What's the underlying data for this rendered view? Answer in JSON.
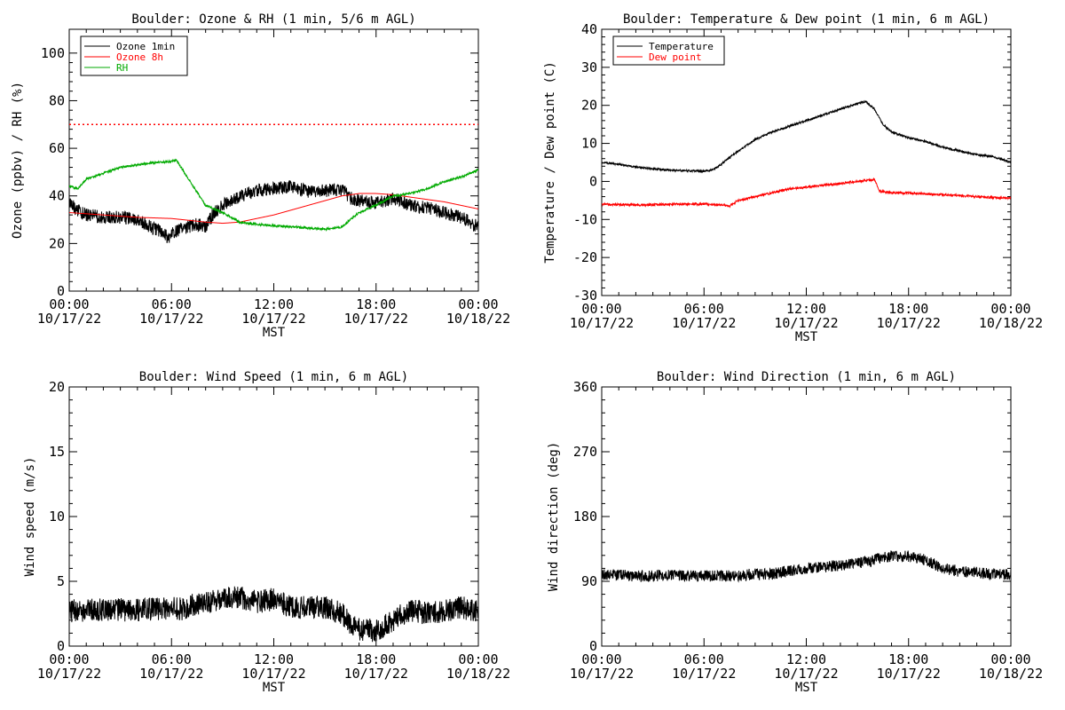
{
  "chart_data": [
    {
      "type": "line",
      "title": "Boulder: Ozone & RH (1 min, 5/6 m AGL)",
      "ylabel": "Ozone (ppbv) / RH (%)",
      "xlabel": "MST",
      "ylim": [
        0,
        110
      ],
      "yticks": [
        0,
        20,
        40,
        60,
        80,
        100
      ],
      "x_tick_hours": [
        0,
        6,
        12,
        18,
        24
      ],
      "x_tick_time_labels": [
        "00:00",
        "06:00",
        "12:00",
        "18:00",
        "00:00"
      ],
      "x_tick_date_labels": [
        "10/17/22",
        "10/17/22",
        "10/17/22",
        "10/17/22",
        "10/18/22"
      ],
      "legend_position": "top-left",
      "reference_line": {
        "y": 70,
        "style": "dotted",
        "color": "#ff0000"
      },
      "series": [
        {
          "name": "Ozone 1min",
          "color": "#000000",
          "noise": 2.8,
          "points": [
            [
              0,
              37
            ],
            [
              0.5,
              34
            ],
            [
              1,
              32
            ],
            [
              2,
              31
            ],
            [
              3,
              31
            ],
            [
              4,
              30
            ],
            [
              5,
              26
            ],
            [
              5.5,
              25
            ],
            [
              5.8,
              22
            ],
            [
              6,
              24
            ],
            [
              6.5,
              26
            ],
            [
              7,
              27
            ],
            [
              7.5,
              28
            ],
            [
              8,
              27
            ],
            [
              8.5,
              33
            ],
            [
              9,
              36
            ],
            [
              9.5,
              38
            ],
            [
              10,
              40
            ],
            [
              11,
              42
            ],
            [
              12,
              43
            ],
            [
              13,
              44
            ],
            [
              14,
              42
            ],
            [
              15,
              42
            ],
            [
              16,
              43
            ],
            [
              16.5,
              39
            ],
            [
              17,
              38
            ],
            [
              18,
              37
            ],
            [
              19,
              39
            ],
            [
              20,
              36
            ],
            [
              21,
              35
            ],
            [
              22,
              33
            ],
            [
              23,
              31
            ],
            [
              24,
              27
            ]
          ]
        },
        {
          "name": "Ozone 8h",
          "color": "#ff0000",
          "noise": 0,
          "points": [
            [
              0,
              33
            ],
            [
              2,
              32
            ],
            [
              4,
              31
            ],
            [
              6,
              30.5
            ],
            [
              8,
              29
            ],
            [
              9,
              28.5
            ],
            [
              10,
              29
            ],
            [
              12,
              32
            ],
            [
              14,
              36
            ],
            [
              16,
              40
            ],
            [
              17,
              41
            ],
            [
              18,
              41
            ],
            [
              19,
              40.5
            ],
            [
              20,
              39.5
            ],
            [
              22,
              37.5
            ],
            [
              24,
              34.5
            ]
          ]
        },
        {
          "name": "RH",
          "color": "#00aa00",
          "noise": 0.45,
          "points": [
            [
              0,
              44
            ],
            [
              0.5,
              43
            ],
            [
              1,
              47
            ],
            [
              2,
              49.5
            ],
            [
              3,
              52
            ],
            [
              4,
              53
            ],
            [
              5,
              54
            ],
            [
              6,
              54.5
            ],
            [
              6.3,
              55
            ],
            [
              7,
              47
            ],
            [
              8,
              36
            ],
            [
              9,
              33
            ],
            [
              10,
              29
            ],
            [
              11,
              28
            ],
            [
              12,
              27.5
            ],
            [
              13,
              27
            ],
            [
              14,
              26.5
            ],
            [
              15,
              26
            ],
            [
              16,
              27
            ],
            [
              16.5,
              30
            ],
            [
              17,
              33
            ],
            [
              18,
              36
            ],
            [
              19,
              40
            ],
            [
              20,
              41
            ],
            [
              21,
              43
            ],
            [
              22,
              46
            ],
            [
              23,
              48
            ],
            [
              24,
              51
            ]
          ]
        }
      ]
    },
    {
      "type": "line",
      "title": "Boulder: Temperature & Dew point (1 min, 6 m AGL)",
      "ylabel": "Temperature / Dew point (C)",
      "xlabel": "MST",
      "ylim": [
        -30,
        40
      ],
      "yticks": [
        -30,
        -20,
        -10,
        0,
        10,
        20,
        30,
        40
      ],
      "x_tick_hours": [
        0,
        6,
        12,
        18,
        24
      ],
      "x_tick_time_labels": [
        "00:00",
        "06:00",
        "12:00",
        "18:00",
        "00:00"
      ],
      "x_tick_date_labels": [
        "10/17/22",
        "10/17/22",
        "10/17/22",
        "10/17/22",
        "10/18/22"
      ],
      "legend_position": "top-left",
      "series": [
        {
          "name": "Temperature",
          "color": "#000000",
          "noise": 0.25,
          "points": [
            [
              0,
              5
            ],
            [
              1,
              4.5
            ],
            [
              2,
              3.8
            ],
            [
              3,
              3.3
            ],
            [
              4,
              3
            ],
            [
              5,
              2.8
            ],
            [
              6,
              2.7
            ],
            [
              6.5,
              3
            ],
            [
              7,
              4.5
            ],
            [
              8,
              8
            ],
            [
              9,
              11
            ],
            [
              10,
              13
            ],
            [
              11,
              14.5
            ],
            [
              12,
              16
            ],
            [
              13,
              17.5
            ],
            [
              14,
              19
            ],
            [
              15,
              20.5
            ],
            [
              15.5,
              21
            ],
            [
              16,
              19
            ],
            [
              16.5,
              15
            ],
            [
              17,
              13
            ],
            [
              18,
              11.5
            ],
            [
              19,
              10.5
            ],
            [
              20,
              9
            ],
            [
              21,
              8
            ],
            [
              22,
              7
            ],
            [
              23,
              6.5
            ],
            [
              24,
              5
            ]
          ]
        },
        {
          "name": "Dew point",
          "color": "#ff0000",
          "noise": 0.3,
          "points": [
            [
              0,
              -6
            ],
            [
              2,
              -6.2
            ],
            [
              4,
              -6
            ],
            [
              6,
              -6
            ],
            [
              7,
              -6.2
            ],
            [
              7.5,
              -6.5
            ],
            [
              8,
              -5
            ],
            [
              9,
              -4
            ],
            [
              10,
              -3
            ],
            [
              11,
              -2
            ],
            [
              12,
              -1.5
            ],
            [
              13,
              -1
            ],
            [
              14,
              -0.5
            ],
            [
              15,
              0
            ],
            [
              16,
              0.5
            ],
            [
              16.3,
              -2.5
            ],
            [
              17,
              -3
            ],
            [
              18,
              -3
            ],
            [
              20,
              -3.5
            ],
            [
              22,
              -4
            ],
            [
              24,
              -4.5
            ]
          ]
        }
      ]
    },
    {
      "type": "line",
      "title": "Boulder: Wind Speed (1 min, 6 m AGL)",
      "ylabel": "Wind speed (m/s)",
      "xlabel": "MST",
      "ylim": [
        0,
        20
      ],
      "yticks": [
        0,
        5,
        10,
        15,
        20
      ],
      "x_tick_hours": [
        0,
        6,
        12,
        18,
        24
      ],
      "x_tick_time_labels": [
        "00:00",
        "06:00",
        "12:00",
        "18:00",
        "00:00"
      ],
      "x_tick_date_labels": [
        "10/17/22",
        "10/17/22",
        "10/17/22",
        "10/17/22",
        "10/18/22"
      ],
      "series": [
        {
          "name": "",
          "color": "#000000",
          "noise": 0.9,
          "points": [
            [
              0,
              2.7
            ],
            [
              2,
              2.8
            ],
            [
              4,
              2.8
            ],
            [
              6,
              2.9
            ],
            [
              7,
              2.8
            ],
            [
              7.2,
              3.2
            ],
            [
              8,
              3.3
            ],
            [
              9,
              3.6
            ],
            [
              10,
              3.8
            ],
            [
              11,
              3.4
            ],
            [
              12,
              3.6
            ],
            [
              13,
              3
            ],
            [
              14,
              3
            ],
            [
              15,
              3
            ],
            [
              16,
              2.5
            ],
            [
              16.5,
              1.6
            ],
            [
              17,
              1.3
            ],
            [
              18,
              1.2
            ],
            [
              19,
              2
            ],
            [
              20,
              2.8
            ],
            [
              21,
              2.5
            ],
            [
              22,
              2.7
            ],
            [
              23,
              3
            ],
            [
              24,
              2.7
            ]
          ]
        }
      ]
    },
    {
      "type": "line",
      "title": "Boulder: Wind Direction (1 min, 6 m AGL)",
      "ylabel": "Wind direction (deg)",
      "xlabel": "MST",
      "ylim": [
        0,
        360
      ],
      "yticks": [
        0,
        90,
        180,
        270,
        360
      ],
      "x_tick_hours": [
        0,
        6,
        12,
        18,
        24
      ],
      "x_tick_time_labels": [
        "00:00",
        "06:00",
        "12:00",
        "18:00",
        "00:00"
      ],
      "x_tick_date_labels": [
        "10/17/22",
        "10/17/22",
        "10/17/22",
        "10/17/22",
        "10/18/22"
      ],
      "series": [
        {
          "name": "",
          "color": "#000000",
          "noise": 8,
          "points": [
            [
              0,
              100
            ],
            [
              2,
              97
            ],
            [
              4,
              98
            ],
            [
              6,
              97
            ],
            [
              8,
              98
            ],
            [
              9,
              100
            ],
            [
              10,
              100
            ],
            [
              11,
              105
            ],
            [
              12,
              108
            ],
            [
              13,
              110
            ],
            [
              14,
              112
            ],
            [
              15,
              115
            ],
            [
              16,
              120
            ],
            [
              17,
              125
            ],
            [
              18,
              125
            ],
            [
              19,
              120
            ],
            [
              20,
              108
            ],
            [
              21,
              104
            ],
            [
              22,
              102
            ],
            [
              23,
              100
            ],
            [
              24,
              100
            ]
          ]
        }
      ]
    }
  ]
}
